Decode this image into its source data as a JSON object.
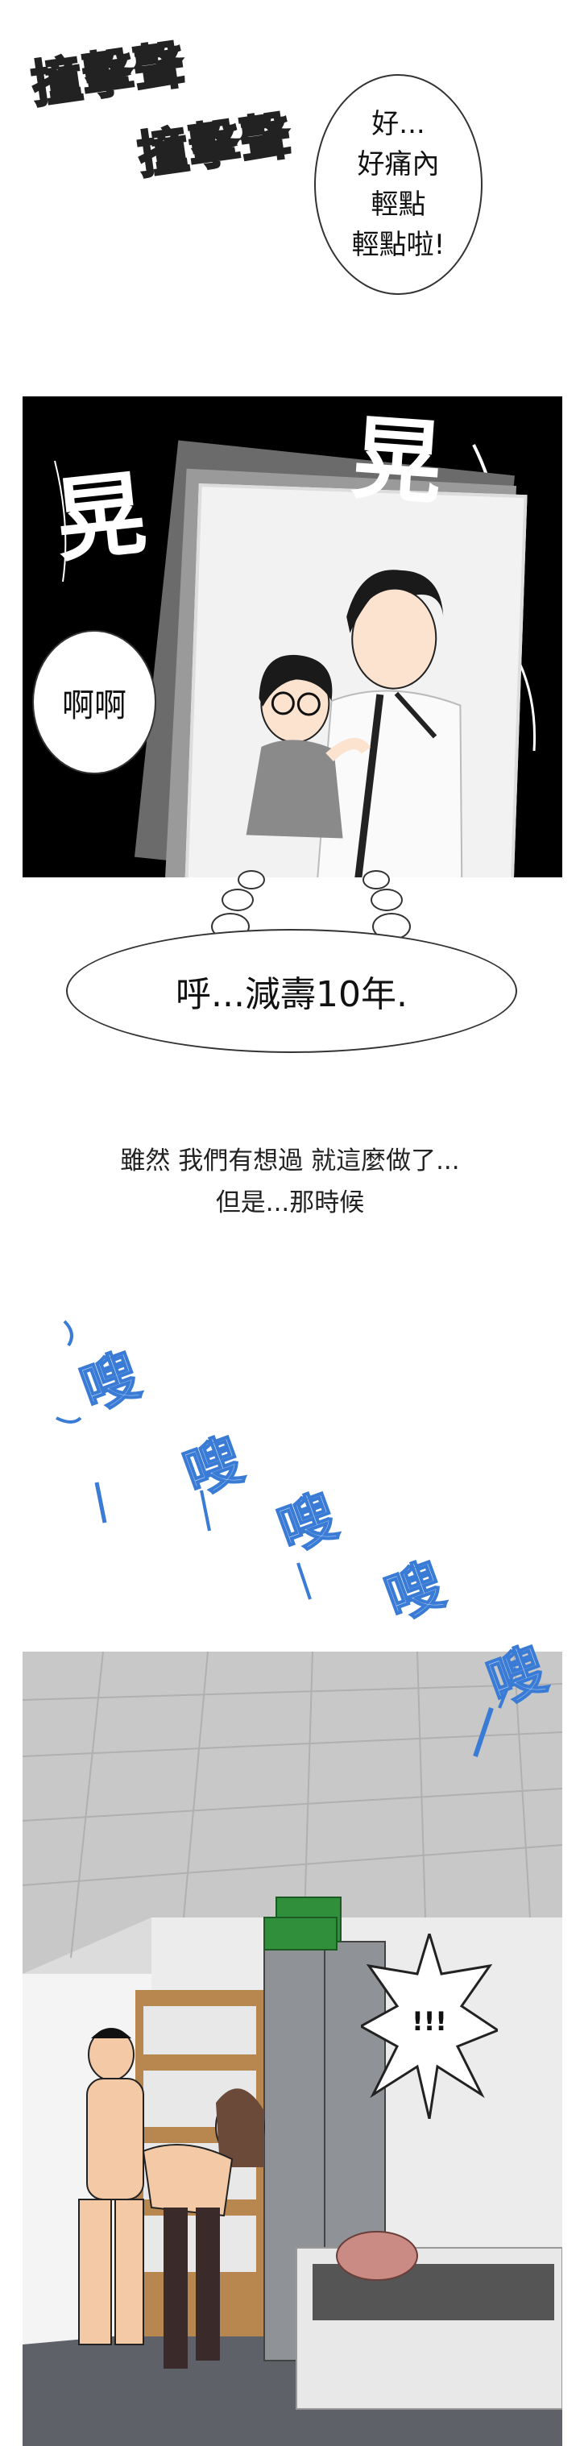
{
  "sfx_top": {
    "line1": "撞擊聲",
    "line2": "撞擊聲"
  },
  "speech_top": {
    "line1": "好...",
    "line2": "好痛內",
    "line3": "輕點",
    "line4": "輕點啦!"
  },
  "panel2": {
    "sfx_left": "晃",
    "sfx_right": "晃",
    "speech_left": "啊啊"
  },
  "thought": {
    "text": "呼...減壽10年."
  },
  "narration": {
    "line1": "雖然 我們有想過 就這麼做了...",
    "line2": "但是...那時候"
  },
  "sfx_blue": [
    "嗖",
    "嗖",
    "嗖",
    "嗖",
    "嗖"
  ],
  "panel3": {
    "speech_right": "!!!"
  },
  "colors": {
    "blue_sfx": "#3a7bd5",
    "panel_black": "#000000"
  }
}
